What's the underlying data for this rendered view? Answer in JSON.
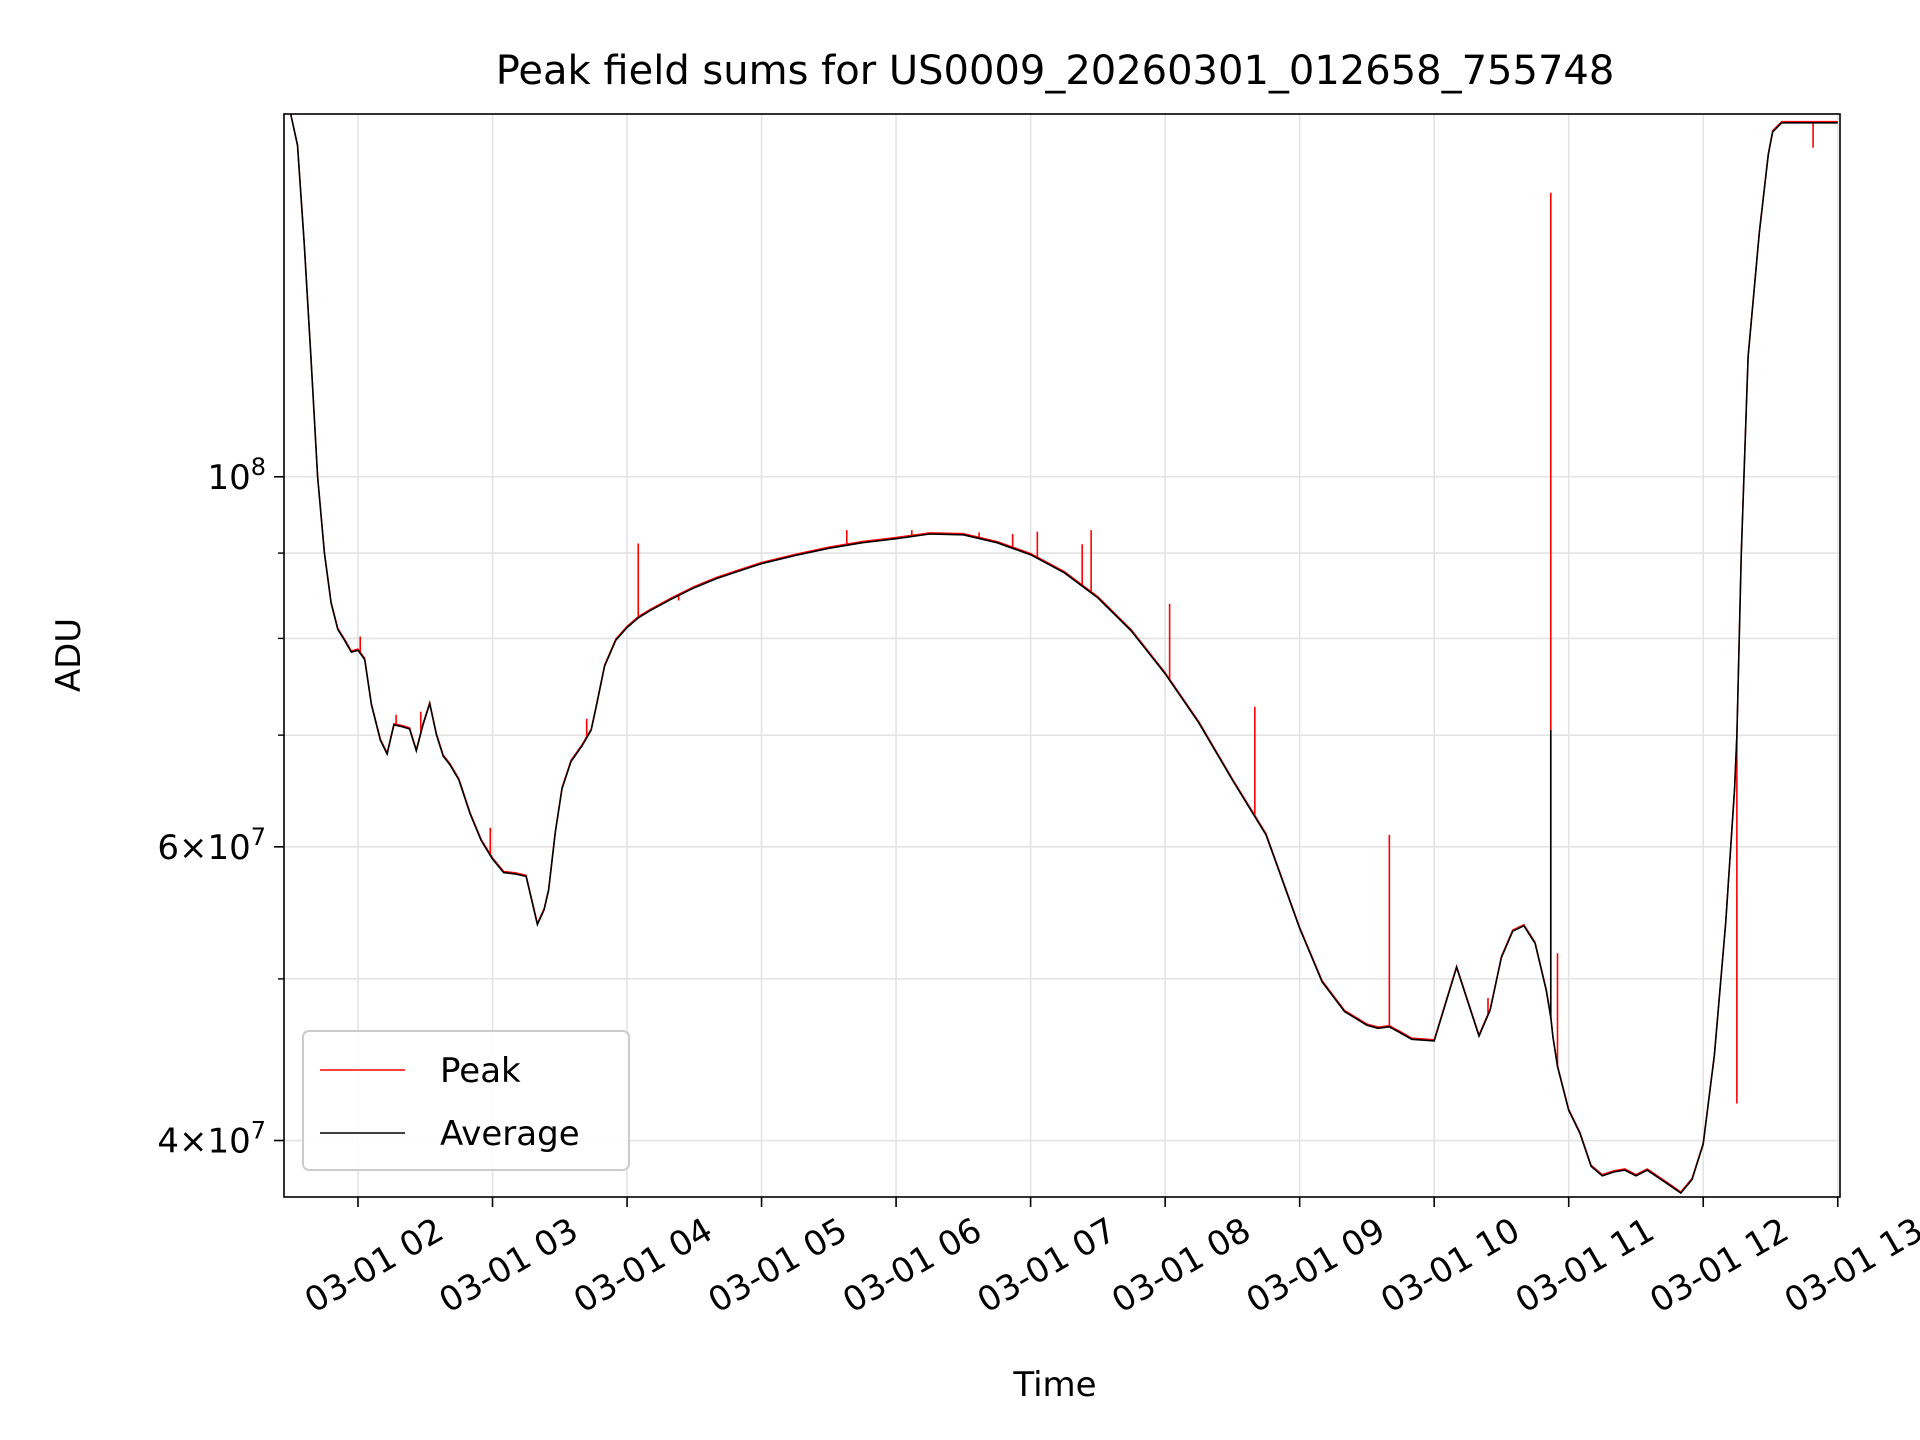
{
  "chart_data": {
    "type": "line",
    "title": "Peak field sums for US0009_20260301_012658_755748",
    "xlabel": "Time",
    "ylabel": "ADU",
    "yscale": "log",
    "grid": true,
    "legend_placement": "lower-left",
    "xlim": [
      "03-01 01:27",
      "03-01 13:01"
    ],
    "ylim": [
      37000000,
      165000000
    ],
    "x_tick_labels": [
      "03-01 02",
      "03-01 03",
      "03-01 04",
      "03-01 05",
      "03-01 06",
      "03-01 07",
      "03-01 08",
      "03-01 09",
      "03-01 10",
      "03-01 11",
      "03-01 12",
      "03-01 13"
    ],
    "x_ticks": [
      "03-01 02:00",
      "03-01 03:00",
      "03-01 04:00",
      "03-01 05:00",
      "03-01 06:00",
      "03-01 07:00",
      "03-01 08:00",
      "03-01 09:00",
      "03-01 10:00",
      "03-01 11:00",
      "03-01 12:00",
      "03-01 13:00"
    ],
    "y_major_ticks": [
      {
        "value": 100000000,
        "base": "10",
        "exp": "8"
      },
      {
        "value": 60000000,
        "mant": "6",
        "base": "10",
        "exp": "7"
      },
      {
        "value": 40000000,
        "mant": "4",
        "base": "10",
        "exp": "7"
      }
    ],
    "y_minor_ticks": [
      50000000,
      70000000,
      80000000,
      90000000
    ],
    "legend": [
      {
        "label": "Peak",
        "color": "#ff0000"
      },
      {
        "label": "Average",
        "color": "#000000"
      }
    ],
    "series": [
      {
        "name": "Average",
        "color": "#000000",
        "x": [
          "03-01 01:30",
          "03-01 01:33",
          "03-01 01:36",
          "03-01 01:39",
          "03-01 01:42",
          "03-01 01:45",
          "03-01 01:48",
          "03-01 01:51",
          "03-01 01:54",
          "03-01 01:57",
          "03-01 02:00",
          "03-01 02:03",
          "03-01 02:06",
          "03-01 02:10",
          "03-01 02:13",
          "03-01 02:16",
          "03-01 02:20",
          "03-01 02:23",
          "03-01 02:26",
          "03-01 02:29",
          "03-01 02:32",
          "03-01 02:35",
          "03-01 02:38",
          "03-01 02:41",
          "03-01 02:45",
          "03-01 02:50",
          "03-01 02:55",
          "03-01 03:00",
          "03-01 03:05",
          "03-01 03:10",
          "03-01 03:15",
          "03-01 03:20",
          "03-01 03:23",
          "03-01 03:25",
          "03-01 03:26",
          "03-01 03:28",
          "03-01 03:31",
          "03-01 03:35",
          "03-01 03:40",
          "03-01 03:44",
          "03-01 03:46",
          "03-01 03:50",
          "03-01 03:55",
          "03-01 04:00",
          "03-01 04:05",
          "03-01 04:10",
          "03-01 04:20",
          "03-01 04:30",
          "03-01 04:40",
          "03-01 04:50",
          "03-01 05:00",
          "03-01 05:15",
          "03-01 05:30",
          "03-01 05:45",
          "03-01 06:00",
          "03-01 06:15",
          "03-01 06:30",
          "03-01 06:45",
          "03-01 07:00",
          "03-01 07:15",
          "03-01 07:30",
          "03-01 07:45",
          "03-01 08:00",
          "03-01 08:15",
          "03-01 08:30",
          "03-01 08:45",
          "03-01 09:00",
          "03-01 09:10",
          "03-01 09:20",
          "03-01 09:30",
          "03-01 09:35",
          "03-01 09:40",
          "03-01 09:45",
          "03-01 09:50",
          "03-01 10:00",
          "03-01 10:10",
          "03-01 10:20",
          "03-01 10:25",
          "03-01 10:30",
          "03-01 10:35",
          "03-01 10:40",
          "03-01 10:45",
          "03-01 10:50",
          "03-01 10:52",
          "03-01 10:53",
          "03-01 10:55",
          "03-01 11:00",
          "03-01 11:05",
          "03-01 11:10",
          "03-01 11:15",
          "03-01 11:20",
          "03-01 11:25",
          "03-01 11:30",
          "03-01 11:35",
          "03-01 11:40",
          "03-01 11:45",
          "03-01 11:50",
          "03-01 11:55",
          "03-01 12:00",
          "03-01 12:05",
          "03-01 12:10",
          "03-01 12:14",
          "03-01 12:15",
          "03-01 12:17",
          "03-01 12:20",
          "03-01 12:25",
          "03-01 12:29",
          "03-01 12:31",
          "03-01 12:35",
          "03-01 12:40",
          "03-01 12:45",
          "03-01 12:48",
          "03-01 12:50",
          "03-01 12:53",
          "03-01 12:56",
          "03-01 13:00"
        ],
        "values": [
          165000000,
          158000000,
          138000000,
          118000000,
          100000000,
          90000000,
          84000000,
          81000000,
          79800000,
          78500000,
          78700000,
          77700000,
          73000000,
          69500000,
          68200000,
          71000000,
          70800000,
          70600000,
          68500000,
          71000000,
          73100000,
          70000000,
          68000000,
          67200000,
          65800000,
          62800000,
          60500000,
          59000000,
          57900000,
          57800000,
          57600000,
          53900000,
          55000000,
          56500000,
          58000000,
          61200000,
          65000000,
          67500000,
          69000000,
          70500000,
          72500000,
          77000000,
          79800000,
          81200000,
          82300000,
          83100000,
          84500000,
          85800000,
          86900000,
          87800000,
          88700000,
          89700000,
          90600000,
          91300000,
          91800000,
          92400000,
          92300000,
          91300000,
          89800000,
          87600000,
          84600000,
          80800000,
          76200000,
          71200000,
          65800000,
          61000000,
          53600000,
          49800000,
          47800000,
          46900000,
          46700000,
          46800000,
          46400000,
          46000000,
          45900000,
          50800000,
          46200000,
          47900000,
          51500000,
          53400000,
          53800000,
          52500000,
          49200000,
          47400000,
          46100000,
          44300000,
          41700000,
          40400000,
          38600000,
          38100000,
          38300000,
          38400000,
          38100000,
          38400000,
          38000000,
          37600000,
          37200000,
          37900000,
          39800000,
          45000000,
          54000000,
          65000000,
          70000000,
          90000000,
          118000000,
          140000000,
          156000000,
          161000000,
          163000000,
          163000000,
          163000000,
          163000000,
          163000000,
          163000000,
          163000000,
          163000000
        ]
      },
      {
        "name": "Peak",
        "color": "#ff0000",
        "spikes": [
          {
            "x": "03-01 02:01",
            "value": 80200000
          },
          {
            "x": "03-01 02:17",
            "value": 72000000
          },
          {
            "x": "03-01 02:28",
            "value": 72300000
          },
          {
            "x": "03-01 02:59",
            "value": 61600000
          },
          {
            "x": "03-01 03:42",
            "value": 71600000
          },
          {
            "x": "03-01 04:05",
            "value": 91200000
          },
          {
            "x": "03-01 04:23",
            "value": 84300000
          },
          {
            "x": "03-01 05:38",
            "value": 92900000
          },
          {
            "x": "03-01 06:07",
            "value": 92900000
          },
          {
            "x": "03-01 06:37",
            "value": 92600000
          },
          {
            "x": "03-01 06:52",
            "value": 92400000
          },
          {
            "x": "03-01 07:03",
            "value": 92700000
          },
          {
            "x": "03-01 07:23",
            "value": 91100000
          },
          {
            "x": "03-01 07:27",
            "value": 92900000
          },
          {
            "x": "03-01 08:02",
            "value": 83900000
          },
          {
            "x": "03-01 08:40",
            "value": 72800000
          },
          {
            "x": "03-01 09:40",
            "value": 61000000
          },
          {
            "x": "03-01 10:24",
            "value": 48700000
          },
          {
            "x": "03-01 10:52",
            "value": 148000000
          },
          {
            "x": "03-01 10:55",
            "value": 51800000
          },
          {
            "x": "03-01 12:15",
            "value": 42100000
          },
          {
            "x": "03-01 12:49",
            "value": 157500000
          }
        ]
      }
    ]
  }
}
